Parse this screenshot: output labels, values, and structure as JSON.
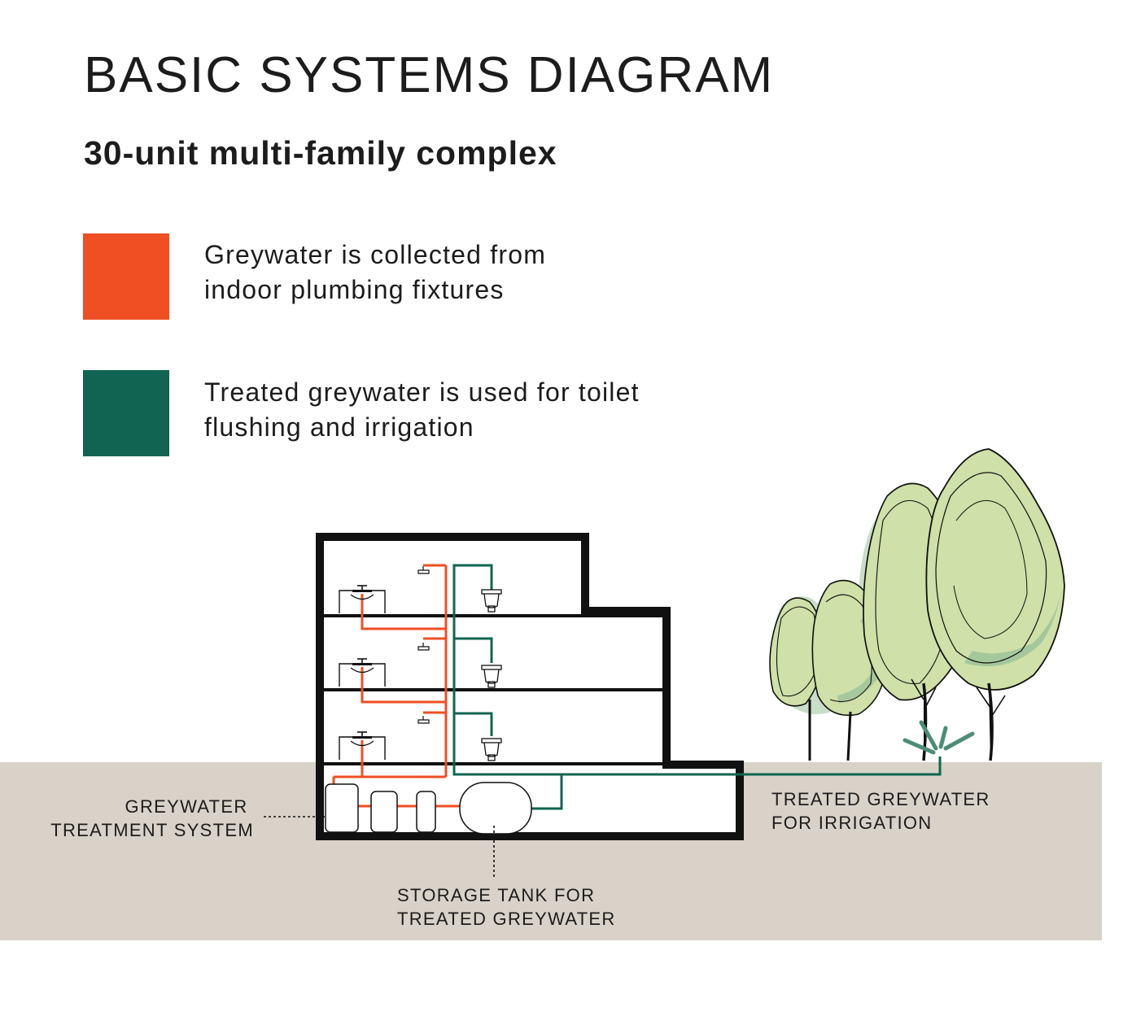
{
  "title": "BASIC SYSTEMS DIAGRAM",
  "subtitle": "30-unit multi-family complex",
  "colors": {
    "greywater": "#F04E23",
    "treated": "#116451",
    "ground": "#D8D2C8",
    "structure": "#111111",
    "tree_fill": "#CFE0A8",
    "tree_shade": "#9CC29A"
  },
  "legend": [
    {
      "color": "#F04E23",
      "lines": [
        "Greywater is collected from",
        "indoor plumbing fixtures"
      ]
    },
    {
      "color": "#116451",
      "lines": [
        "Treated greywater is used for toilet",
        "flushing and irrigation"
      ]
    }
  ],
  "labels": {
    "treatment": [
      "GREYWATER",
      "TREATMENT SYSTEM"
    ],
    "storage": [
      "STORAGE TANK FOR",
      "TREATED GREYWATER"
    ],
    "irrigation": [
      "TREATED GREYWATER",
      "FOR IRRIGATION"
    ]
  },
  "icons": [
    "sink-icon",
    "shower-icon",
    "toilet-icon",
    "sprinkler-icon",
    "tree-icon"
  ]
}
